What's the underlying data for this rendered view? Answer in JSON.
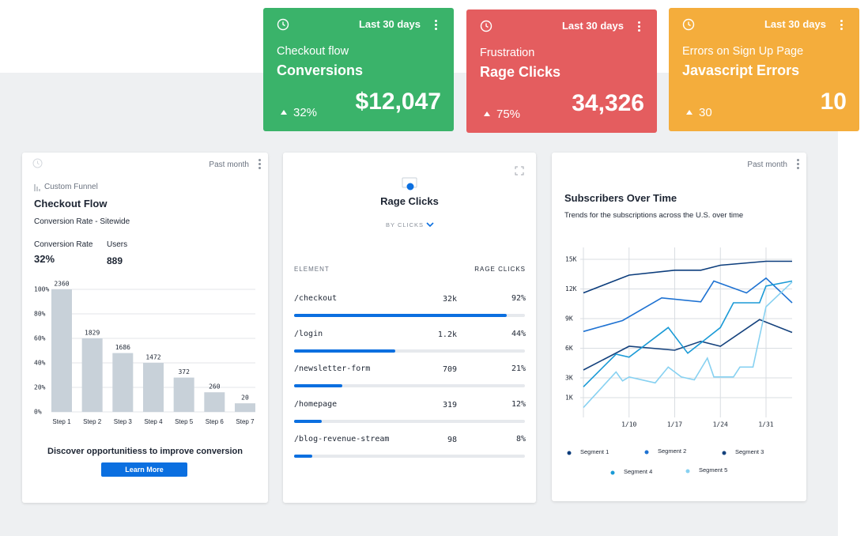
{
  "kpi_cards": [
    {
      "period": "Last 30 days",
      "label": "Checkout flow",
      "metric": "Conversions",
      "change": "32%",
      "value": "$12,047",
      "color": "#3ab36a"
    },
    {
      "period": "Last 30 days",
      "label": "Frustration",
      "metric": "Rage Clicks",
      "change": "75%",
      "value": "34,326",
      "color": "#e45d5f"
    },
    {
      "period": "Last 30 days",
      "label": "Errors on Sign Up Page",
      "metric": "Javascript Errors",
      "change": "30",
      "value": "10",
      "color": "#f4ad3c"
    }
  ],
  "funnel_card": {
    "period": "Past month",
    "tag": "Custom Funnel",
    "stats": [
      {
        "label": "Conversion Rate",
        "value": "32%"
      },
      {
        "label": "Users",
        "value": "889"
      }
    ],
    "cta_text": "Discover opportunitiess to improve conversion",
    "button": "Learn More"
  },
  "rage_card": {
    "title": "Rage Clicks",
    "filter": "BY CLICKS",
    "columns": [
      "ELEMENT",
      "RAGE CLICKS"
    ],
    "rows": [
      {
        "element": "/checkout",
        "clicks": "32k",
        "share": 92,
        "share_label": "92%"
      },
      {
        "element": "/login",
        "clicks": "1.2k",
        "share": 44,
        "share_label": "44%"
      },
      {
        "element": "/newsletter-form",
        "clicks": "709",
        "share": 21,
        "share_label": "21%"
      },
      {
        "element": "/homepage",
        "clicks": "319",
        "share": 12,
        "share_label": "12%"
      },
      {
        "element": "/blog-revenue-stream",
        "clicks": "98",
        "share": 8,
        "share_label": "8%"
      }
    ]
  },
  "subscribers_card": {
    "period": "Past month"
  },
  "chart_data": [
    {
      "type": "bar",
      "title": "Checkout Flow",
      "subtitle": "Conversion Rate - Sitewide",
      "categories": [
        "Step 1",
        "Step 2",
        "Step 3",
        "Step 4",
        "Step 5",
        "Step 6",
        "Step 7"
      ],
      "values": [
        100,
        60,
        48,
        40,
        28,
        16,
        7
      ],
      "users": [
        2360,
        1829,
        1686,
        1472,
        372,
        260,
        20
      ],
      "color": "#c8d1d9",
      "ylim": [
        0,
        100
      ],
      "yticks": [
        {
          "value": 0,
          "label": "0%"
        },
        {
          "value": 20,
          "label": "20%"
        },
        {
          "value": 40,
          "label": "40%"
        },
        {
          "value": 60,
          "label": "60%"
        },
        {
          "value": 80,
          "label": "80%"
        },
        {
          "value": 100,
          "label": "100%"
        }
      ],
      "grid": true
    },
    {
      "type": "line",
      "title": "Subscribers Over Time",
      "subtitle": "Trends for the subscriptions across the U.S. over time",
      "xlim": [
        3,
        35
      ],
      "xticks": [
        {
          "value": 10,
          "label": "1/10"
        },
        {
          "value": 17,
          "label": "1/17"
        },
        {
          "value": 24,
          "label": "1/24"
        },
        {
          "value": 31,
          "label": "1/31"
        }
      ],
      "ylim": [
        -1000,
        16200
      ],
      "yticks": [
        {
          "value": 1000,
          "label": "1K"
        },
        {
          "value": 3000,
          "label": "3K"
        },
        {
          "value": 6000,
          "label": "6K"
        },
        {
          "value": 9000,
          "label": "9K"
        },
        {
          "value": 12000,
          "label": "12K"
        },
        {
          "value": 15000,
          "label": "15K"
        }
      ],
      "grid": true,
      "series": [
        {
          "name": "Segment 1",
          "color": "#0c3d7c",
          "x": [
            3,
            10,
            17,
            21,
            24,
            31,
            35
          ],
          "values": [
            11600,
            13400,
            13900,
            13900,
            14400,
            14800,
            14800
          ]
        },
        {
          "name": "Segment 2",
          "color": "#1e72d2",
          "x": [
            3,
            9,
            15,
            21,
            23,
            28,
            31,
            35
          ],
          "values": [
            7700,
            8800,
            11100,
            10700,
            12800,
            11600,
            13100,
            10600
          ]
        },
        {
          "name": "Segment 3",
          "color": "#15427d",
          "x": [
            3,
            10,
            17,
            21,
            24,
            30,
            35
          ],
          "values": [
            3800,
            6200,
            5800,
            6700,
            6200,
            8900,
            7600
          ]
        },
        {
          "name": "Segment 4",
          "color": "#1a9ad6",
          "x": [
            3,
            8,
            10,
            16,
            19,
            24,
            26,
            30,
            31,
            35
          ],
          "values": [
            2100,
            5400,
            5100,
            8100,
            5500,
            8100,
            10600,
            10600,
            12300,
            12800
          ]
        },
        {
          "name": "Segment 5",
          "color": "#87d1f1",
          "x": [
            3,
            8,
            9,
            10,
            14,
            16,
            18,
            20,
            22,
            23,
            26,
            27,
            29,
            31,
            35
          ],
          "values": [
            0,
            3600,
            2700,
            3100,
            2500,
            4100,
            3100,
            2800,
            5000,
            3100,
            3100,
            4100,
            4100,
            10200,
            12700
          ]
        }
      ]
    }
  ]
}
